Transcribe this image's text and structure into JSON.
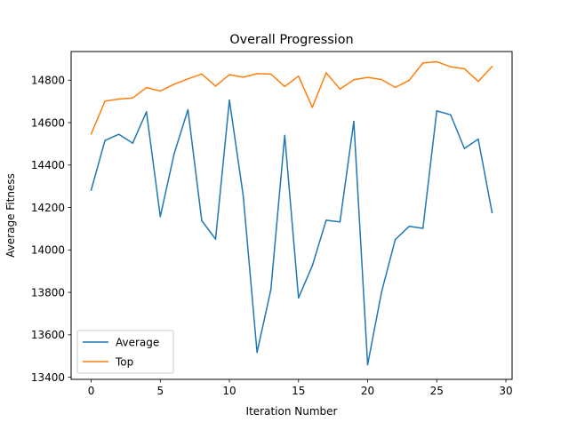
{
  "chart_data": {
    "type": "line",
    "title": "Overall Progression",
    "xlabel": "Iteration Number",
    "ylabel": "Average Fitness",
    "xlim": [
      -1.45,
      30.45
    ],
    "ylim": [
      13390,
      14935
    ],
    "x_ticks": [
      0,
      5,
      10,
      15,
      20,
      25,
      30
    ],
    "y_ticks": [
      13400,
      13600,
      13800,
      14000,
      14200,
      14400,
      14600,
      14800
    ],
    "grid": false,
    "legend_position": "lower left",
    "x": [
      0,
      1,
      2,
      3,
      4,
      5,
      6,
      7,
      8,
      9,
      10,
      11,
      12,
      13,
      14,
      15,
      16,
      17,
      18,
      19,
      20,
      21,
      22,
      23,
      24,
      25,
      26,
      27,
      28,
      29
    ],
    "series": [
      {
        "name": "Average",
        "color": "#1f77b4",
        "values": [
          14282,
          14516,
          14545,
          14503,
          14651,
          14157,
          14453,
          14661,
          14138,
          14051,
          14706,
          14255,
          13517,
          13813,
          14540,
          13774,
          13926,
          14140,
          14132,
          14606,
          13459,
          13800,
          14049,
          14111,
          14102,
          14655,
          14637,
          14478,
          14522,
          14176
        ]
      },
      {
        "name": "Top",
        "color": "#ff7f0e",
        "values": [
          14547,
          14701,
          14711,
          14716,
          14765,
          14749,
          14781,
          14806,
          14829,
          14772,
          14826,
          14814,
          14831,
          14829,
          14770,
          14819,
          14672,
          14835,
          14758,
          14802,
          14813,
          14803,
          14766,
          14799,
          14881,
          14887,
          14863,
          14854,
          14794,
          14864
        ]
      }
    ]
  }
}
